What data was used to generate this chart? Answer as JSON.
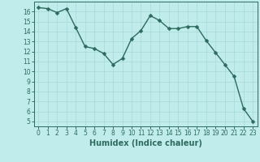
{
  "x": [
    0,
    1,
    2,
    3,
    4,
    5,
    6,
    7,
    8,
    9,
    10,
    11,
    12,
    13,
    14,
    15,
    16,
    17,
    18,
    19,
    20,
    21,
    22,
    23
  ],
  "y": [
    16.4,
    16.3,
    15.9,
    16.3,
    14.4,
    12.5,
    12.3,
    11.8,
    10.7,
    11.3,
    13.3,
    14.1,
    15.6,
    15.1,
    14.3,
    14.3,
    14.5,
    14.5,
    13.1,
    11.9,
    10.7,
    9.5,
    6.3,
    5.0
  ],
  "line_color": "#2e6b5e",
  "bg_color": "#c0ecec",
  "grid_color": "#a8d8d8",
  "xlabel": "Humidex (Indice chaleur)",
  "ylim": [
    4.5,
    17
  ],
  "xlim": [
    -0.5,
    23.5
  ],
  "yticks": [
    5,
    6,
    7,
    8,
    9,
    10,
    11,
    12,
    13,
    14,
    15,
    16
  ],
  "xticks": [
    0,
    1,
    2,
    3,
    4,
    5,
    6,
    7,
    8,
    9,
    10,
    11,
    12,
    13,
    14,
    15,
    16,
    17,
    18,
    19,
    20,
    21,
    22,
    23
  ],
  "marker_size": 2.5,
  "line_width": 1.0,
  "tick_fontsize": 5.5,
  "xlabel_fontsize": 7.0
}
